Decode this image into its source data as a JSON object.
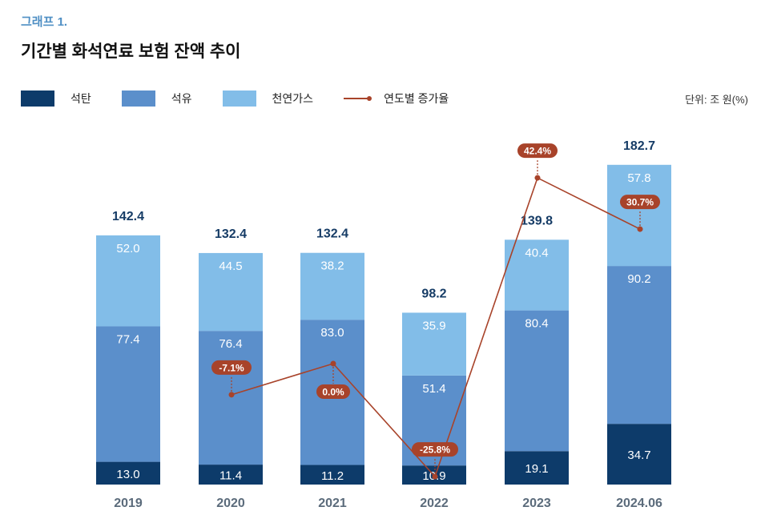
{
  "subtitle": "그래프 1.",
  "title": "기간별 화석연료 보험 잔액 추이",
  "unit": "단위: 조 원(%)",
  "colors": {
    "coal": "#0d3b6a",
    "oil": "#5b8fcb",
    "gas": "#82bde8",
    "line": "#a8432a",
    "total": "#163c66",
    "year": "#5b6b7b"
  },
  "chart_data": {
    "type": "bar",
    "stacked": true,
    "categories": [
      "2019",
      "2020",
      "2021",
      "2022",
      "2023",
      "2024.06"
    ],
    "series": [
      {
        "name": "석탄",
        "values": [
          13.0,
          11.4,
          11.2,
          10.9,
          19.1,
          34.7
        ]
      },
      {
        "name": "석유",
        "values": [
          77.4,
          76.4,
          83.0,
          51.4,
          80.4,
          90.2
        ]
      },
      {
        "name": "천연가스",
        "values": [
          52.0,
          44.5,
          38.2,
          35.9,
          40.4,
          57.8
        ]
      }
    ],
    "totals": [
      "142.4",
      "132.4",
      "132.4",
      "98.2",
      "139.8",
      "182.7"
    ],
    "line_series": {
      "name": "연도별 증가율",
      "values": [
        null,
        -7.1,
        0.0,
        -25.8,
        42.4,
        30.7
      ],
      "labels": [
        "",
        "-7.1%",
        "0.0%",
        "-25.8%",
        "42.4%",
        "30.7%"
      ]
    },
    "legend": "top-left",
    "grid": false
  }
}
